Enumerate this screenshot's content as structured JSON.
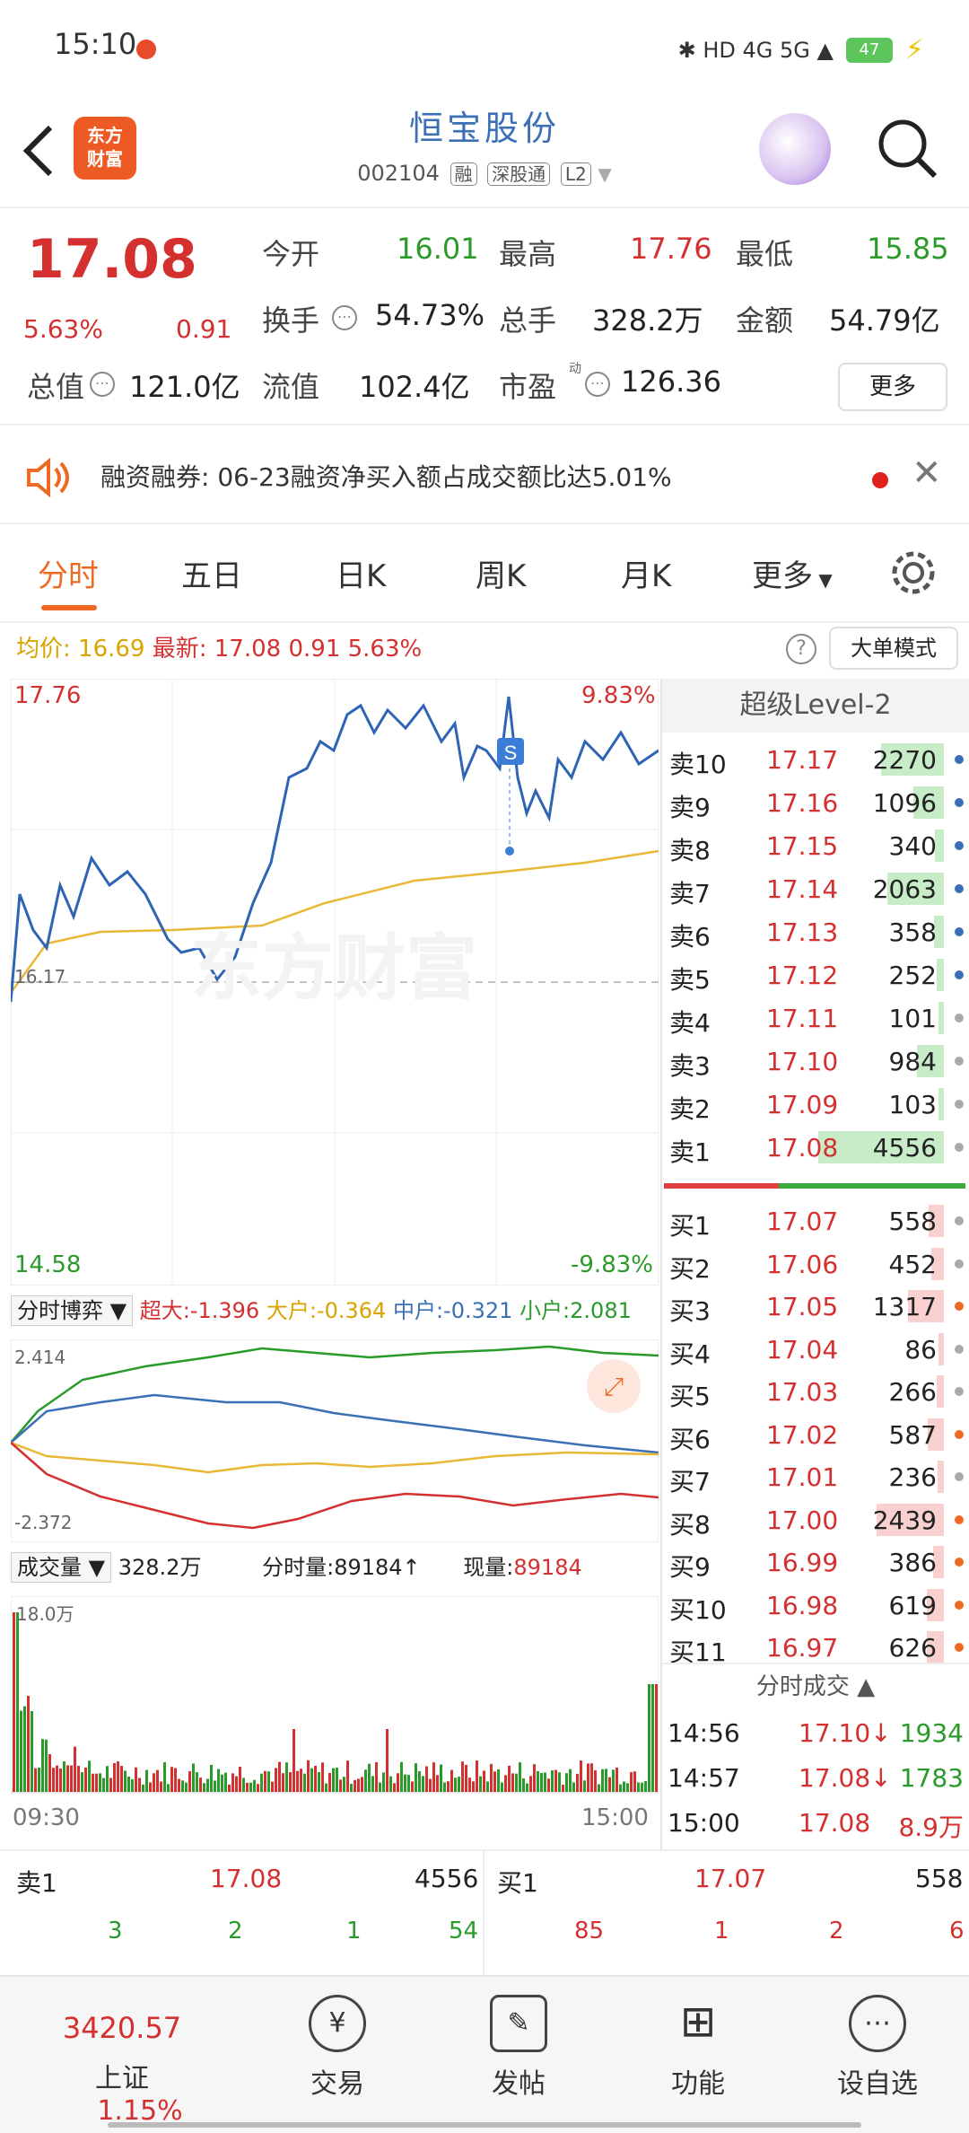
{
  "status_bar": {
    "time": "15:10",
    "battery": "47",
    "icons": "✱ HD 4G 5G ▲"
  },
  "header": {
    "title": "恒宝股份",
    "code": "002104",
    "tags": [
      "融",
      "深股通",
      "L2"
    ],
    "logo_text": "东方\n财富"
  },
  "quote": {
    "price": "17.08",
    "pct": "5.63%",
    "chg": "0.91",
    "open_label": "今开",
    "open": "16.01",
    "high_label": "最高",
    "high": "17.76",
    "low_label": "最低",
    "low": "15.85",
    "turnover_label": "换手",
    "turnover": "54.73%",
    "volume_label": "总手",
    "volume": "328.2万",
    "amount_label": "金额",
    "amount": "54.79亿",
    "mcap_label": "总值",
    "mcap": "121.0亿",
    "float_label": "流值",
    "float": "102.4亿",
    "pe_label": "市盈",
    "pe_sup": "动",
    "pe": "126.36",
    "more": "更多"
  },
  "notice": {
    "text": "融资融券: 06-23融资净买入额占成交额比达5.01%"
  },
  "tabs": [
    "分时",
    "五日",
    "日K",
    "周K",
    "月K",
    "更多"
  ],
  "intraday": {
    "avg_label": "均价:",
    "avg": "16.69",
    "latest_label": "最新:",
    "latest": "17.08",
    "chg": "0.91",
    "pct": "5.63%",
    "mode_button": "大单模式",
    "y_top": "17.76",
    "y_bot": "14.58",
    "pct_top": "9.83%",
    "pct_bot": "-9.83%",
    "mid": "16.17",
    "s_marker": "S",
    "watermark": "东方财富"
  },
  "flow": {
    "selector": "分时博弈",
    "super_label": "超大:",
    "super": "-1.396",
    "large_label": "大户:",
    "large": "-0.364",
    "mid_label": "中户:",
    "mid": "-0.321",
    "small_label": "小户:",
    "small": "2.081",
    "y_top": "2.414",
    "y_bot": "-2.372"
  },
  "vol": {
    "selector": "成交量",
    "total": "328.2万",
    "tick_label": "分时量:",
    "tick": "89184",
    "now_label": "现量:",
    "now": "89184",
    "ymax": "18.0万",
    "t_start": "09:30",
    "t_end": "15:00"
  },
  "level2": {
    "title": "超级Level-2",
    "asks": [
      [
        "卖10",
        "17.17",
        "2270"
      ],
      [
        "卖9",
        "17.16",
        "1096"
      ],
      [
        "卖8",
        "17.15",
        "340"
      ],
      [
        "卖7",
        "17.14",
        "2063"
      ],
      [
        "卖6",
        "17.13",
        "358"
      ],
      [
        "卖5",
        "17.12",
        "252"
      ],
      [
        "卖4",
        "17.11",
        "101"
      ],
      [
        "卖3",
        "17.10",
        "984"
      ],
      [
        "卖2",
        "17.09",
        "103"
      ],
      [
        "卖1",
        "17.08",
        "4556"
      ]
    ],
    "bids": [
      [
        "买1",
        "17.07",
        "558"
      ],
      [
        "买2",
        "17.06",
        "452"
      ],
      [
        "买3",
        "17.05",
        "1317"
      ],
      [
        "买4",
        "17.04",
        "86"
      ],
      [
        "买5",
        "17.03",
        "266"
      ],
      [
        "买6",
        "17.02",
        "587"
      ],
      [
        "买7",
        "17.01",
        "236"
      ],
      [
        "买8",
        "17.00",
        "2439"
      ],
      [
        "买9",
        "16.99",
        "386"
      ],
      [
        "买10",
        "16.98",
        "619"
      ],
      [
        "买11",
        "16.97",
        "626"
      ]
    ],
    "trades_title": "分时成交",
    "trades": [
      [
        "14:56",
        "17.10↓",
        "1934"
      ],
      [
        "14:57",
        "17.08↓",
        "1783"
      ],
      [
        "15:00",
        "17.08",
        "8.9万"
      ]
    ]
  },
  "bottom_quote": {
    "sell_label": "卖1",
    "sell_price": "17.08",
    "sell_vol": "4556",
    "buy_label": "买1",
    "buy_price": "17.07",
    "buy_vol": "558",
    "sell_q": [
      "3",
      "2",
      "1",
      "54"
    ],
    "buy_q": [
      "85",
      "1",
      "2",
      "6"
    ]
  },
  "nav": {
    "index_val": "3420.57",
    "index_name": "上证",
    "index_pct": "1.15%",
    "items": [
      "交易",
      "发帖",
      "功能",
      "设自选"
    ]
  }
}
